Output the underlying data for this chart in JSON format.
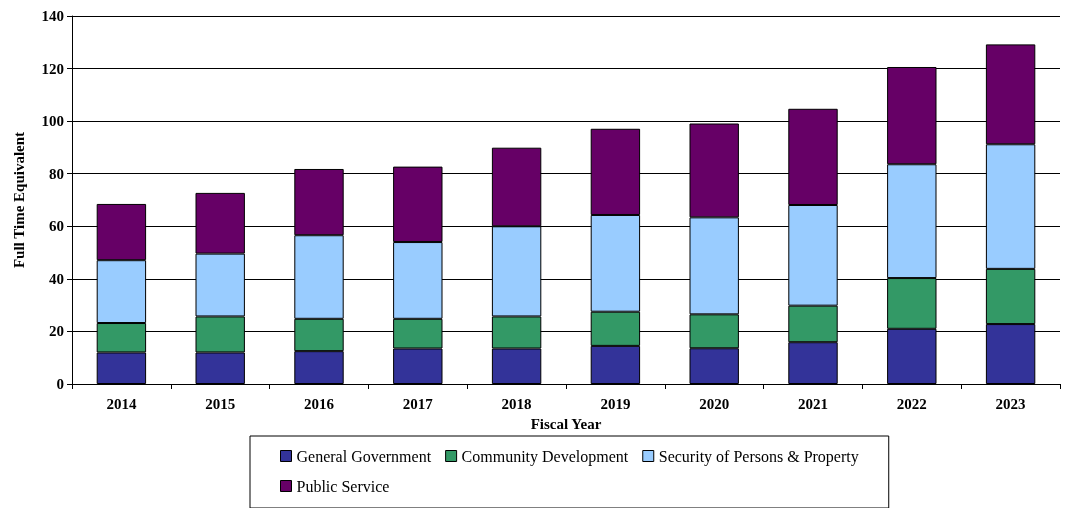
{
  "chart_data": {
    "type": "bar",
    "stacked": true,
    "xlabel": "Fiscal Year",
    "ylabel": "Full Time Equivalent",
    "categories": [
      "2014",
      "2015",
      "2016",
      "2017",
      "2018",
      "2019",
      "2020",
      "2021",
      "2022",
      "2023"
    ],
    "series": [
      {
        "name": "General Government",
        "color": "#333399",
        "values": [
          12,
          12,
          12.5,
          13.5,
          13.5,
          14.5,
          13.6,
          15.9,
          21,
          22.8
        ]
      },
      {
        "name": "Community Development",
        "color": "#339966",
        "values": [
          11.2,
          13.7,
          12.3,
          11.3,
          12.2,
          13,
          12.9,
          13.9,
          19.3,
          21
        ]
      },
      {
        "name": "Security of Persons & Property",
        "color": "#99ccff",
        "values": [
          23.9,
          23.9,
          31.8,
          29.2,
          34.3,
          36.8,
          36.9,
          38.3,
          43.3,
          47.4
        ]
      },
      {
        "name": "Public Service",
        "color": "#660066",
        "values": [
          21.4,
          23.1,
          25.2,
          28.7,
          29.9,
          32.8,
          35.7,
          36.6,
          37,
          38
        ]
      }
    ],
    "ylim": [
      0,
      140
    ],
    "yticks": [
      0,
      20,
      40,
      60,
      80,
      100,
      120,
      140
    ],
    "grid": "y",
    "legend": "bottom"
  }
}
